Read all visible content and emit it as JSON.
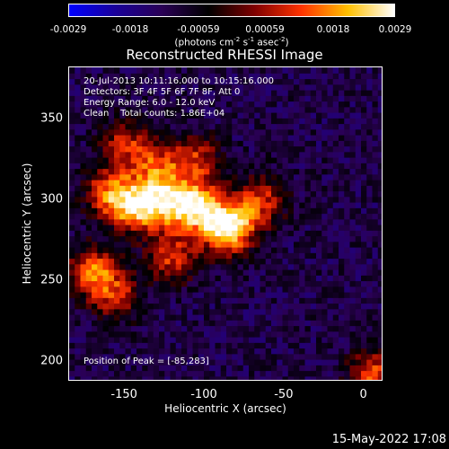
{
  "chart_data": {
    "type": "heatmap",
    "title": "Reconstructed RHESSI Image",
    "xlabel": "Heliocentric X (arcsec)",
    "ylabel": "Heliocentric Y (arcsec)",
    "xlim": [
      -185,
      12
    ],
    "ylim": [
      188,
      382
    ],
    "xticks": [
      "-150",
      "-100",
      "-50",
      "0"
    ],
    "xtick_values": [
      -150,
      -100,
      -50,
      0
    ],
    "yticks": [
      "350",
      "300",
      "250",
      "200"
    ],
    "ytick_values": [
      350,
      300,
      250,
      200
    ],
    "colorbar": {
      "range": [
        -0.0029,
        0.0029
      ],
      "ticks": [
        "-0.0029",
        "-0.0018",
        "-0.00059",
        "0.00059",
        "0.0018",
        "0.0029"
      ],
      "tick_values": [
        -0.0029,
        -0.0018,
        -0.00059,
        0.00059,
        0.0018,
        0.0029
      ],
      "unit_text": "(photons cm",
      "unit_parts": [
        "(photons cm",
        "-2",
        " s",
        "-1",
        " asec",
        "-2",
        ")"
      ],
      "colors": [
        "#0000ff",
        "#1a0099",
        "#2a0055",
        "#000000",
        "#800000",
        "#ff3300",
        "#ffc000",
        "#ffffff"
      ]
    },
    "annotations": [
      "20-Jul-2013 10:11:16.000 to 10:15:16.000",
      "Detectors: 3F 4F 5F 6F 7F 8F, Att 0",
      "Energy Range: 6.0 - 12.0 keV",
      "Clean    Total counts: 1.86E+04",
      "Position of Peak = [-85,283]"
    ],
    "peak": [
      -85,
      283
    ],
    "sources": [
      {
        "x": -85,
        "y": 283,
        "value": 0.0029
      },
      {
        "x": -105,
        "y": 296,
        "value": 0.0023
      },
      {
        "x": -143,
        "y": 296,
        "value": 0.0019
      },
      {
        "x": -125,
        "y": 300,
        "value": 0.0016
      },
      {
        "x": -160,
        "y": 305,
        "value": 0.0013
      },
      {
        "x": -170,
        "y": 256,
        "value": 0.0014
      },
      {
        "x": -120,
        "y": 265,
        "value": 0.001
      },
      {
        "x": -65,
        "y": 300,
        "value": 0.001
      },
      {
        "x": -130,
        "y": 322,
        "value": 0.0008
      },
      {
        "x": -150,
        "y": 335,
        "value": 0.0007
      },
      {
        "x": -105,
        "y": 325,
        "value": 0.0008
      },
      {
        "x": -155,
        "y": 242,
        "value": 0.0007
      },
      {
        "x": 5,
        "y": 192,
        "value": 0.0012
      }
    ]
  },
  "timestamp": "15-May-2022 17:08"
}
